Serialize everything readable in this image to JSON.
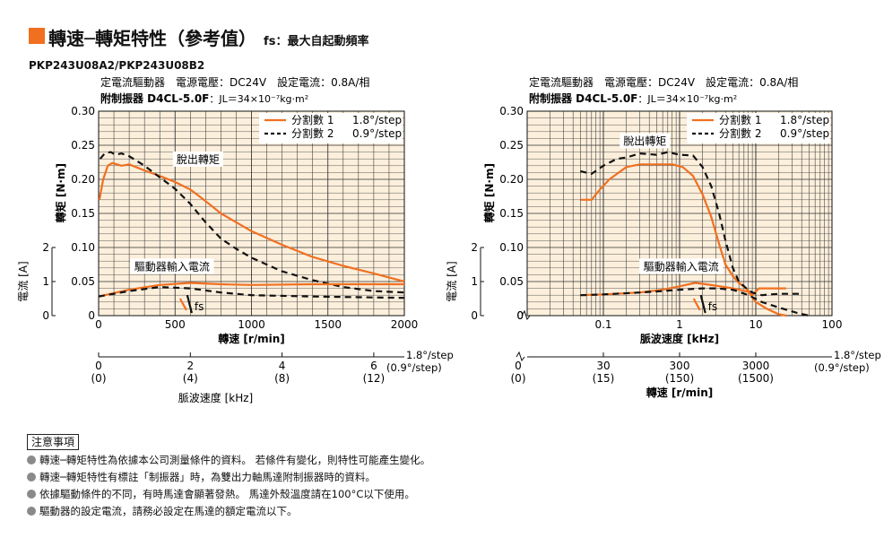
{
  "header": {
    "title": "轉速─轉矩特性（參考值）",
    "fs_note": "fs：最大自起動頻率",
    "model": "PKP243U08A2/PKP243U08B2",
    "accent_color": "#f07020"
  },
  "chart_data": [
    {
      "type": "line",
      "id": "left",
      "condition_line1": "定電流驅動器　電源電壓：DC24V　設定電流：0.8A/相",
      "condition_line2_bold": "附制振器 D4CL-5.0F",
      "condition_line2_rest": "：JL＝34×10⁻⁷kg·m²",
      "ylabel_torque": "轉矩 [N·m]",
      "ylabel_current": "電流 [A]",
      "xlabel": "轉速 [r/min]",
      "xlabel2": "脈波速度 [kHz]",
      "x_scale": "linear",
      "xlim": [
        0,
        2000
      ],
      "ylim": [
        0,
        0.3
      ],
      "x_ticks": [
        "0",
        "500",
        "1000",
        "1500",
        "2000"
      ],
      "y_ticks": [
        "0",
        "0.05",
        "0.10",
        "0.15",
        "0.20",
        "0.25",
        "0.30"
      ],
      "current_ticks": [
        "0",
        "1",
        "2"
      ],
      "secondary_ticks": [
        {
          "top": "0",
          "bottom": "(0)",
          "x": 0
        },
        {
          "top": "2",
          "bottom": "(4)",
          "x": 600
        },
        {
          "top": "4",
          "bottom": "(8)",
          "x": 1200
        },
        {
          "top": "6",
          "bottom": "(12)",
          "x": 1800
        }
      ],
      "secondary_unit_top": "1.8°/step",
      "secondary_unit_bottom": "(0.9°/step)",
      "legend": [
        {
          "name": "分割數 1",
          "step": "1.8°/step",
          "style": "solid"
        },
        {
          "name": "分割數 2",
          "step": "0.9°/step",
          "style": "dashed"
        }
      ],
      "annotations": {
        "pullout": "脫出轉矩",
        "current": "驅動器輸入電流",
        "fs": "fs"
      },
      "fs_value": 580,
      "series": [
        {
          "name": "分割數 1",
          "kind": "torque",
          "style": "solid",
          "points": [
            [
              5,
              0.17
            ],
            [
              30,
              0.2
            ],
            [
              60,
              0.22
            ],
            [
              90,
              0.224
            ],
            [
              120,
              0.222
            ],
            [
              150,
              0.22
            ],
            [
              200,
              0.222
            ],
            [
              300,
              0.213
            ],
            [
              400,
              0.205
            ],
            [
              500,
              0.196
            ],
            [
              600,
              0.185
            ],
            [
              700,
              0.168
            ],
            [
              800,
              0.15
            ],
            [
              900,
              0.137
            ],
            [
              1000,
              0.124
            ],
            [
              1200,
              0.104
            ],
            [
              1400,
              0.086
            ],
            [
              1600,
              0.073
            ],
            [
              1800,
              0.062
            ],
            [
              2000,
              0.05
            ]
          ]
        },
        {
          "name": "分割數 2",
          "kind": "torque",
          "style": "dashed",
          "points": [
            [
              10,
              0.23
            ],
            [
              40,
              0.238
            ],
            [
              80,
              0.24
            ],
            [
              110,
              0.236
            ],
            [
              150,
              0.238
            ],
            [
              200,
              0.234
            ],
            [
              300,
              0.22
            ],
            [
              400,
              0.203
            ],
            [
              500,
              0.186
            ],
            [
              600,
              0.164
            ],
            [
              700,
              0.137
            ],
            [
              800,
              0.113
            ],
            [
              900,
              0.098
            ],
            [
              1000,
              0.085
            ],
            [
              1200,
              0.065
            ],
            [
              1400,
              0.052
            ],
            [
              1600,
              0.042
            ],
            [
              1800,
              0.036
            ],
            [
              2000,
              0.034
            ]
          ]
        },
        {
          "name": "分割數 1",
          "kind": "current",
          "style": "solid",
          "points": [
            [
              0,
              0.028
            ],
            [
              200,
              0.038
            ],
            [
              400,
              0.045
            ],
            [
              600,
              0.048
            ],
            [
              800,
              0.046
            ],
            [
              1000,
              0.045
            ],
            [
              1400,
              0.046
            ],
            [
              2000,
              0.046
            ]
          ]
        },
        {
          "name": "分割數 2",
          "kind": "current",
          "style": "dashed",
          "points": [
            [
              0,
              0.028
            ],
            [
              200,
              0.036
            ],
            [
              400,
              0.042
            ],
            [
              600,
              0.04
            ],
            [
              800,
              0.034
            ],
            [
              1000,
              0.03
            ],
            [
              1400,
              0.028
            ],
            [
              2000,
              0.026
            ]
          ]
        }
      ]
    },
    {
      "type": "line",
      "id": "right",
      "condition_line1": "定電流驅動器　電源電壓：DC24V　設定電流：0.8A/相",
      "condition_line2_bold": "附制振器 D4CL-5.0F",
      "condition_line2_rest": "：JL＝34×10⁻⁷kg·m²",
      "ylabel_torque": "轉矩 [N·m]",
      "ylabel_current": "電流 [A]",
      "xlabel": "脈波速度 [kHz]",
      "xlabel2": "轉速 [r/min]",
      "x_scale": "log",
      "xlim": [
        0.01,
        100
      ],
      "ylim": [
        0,
        0.3
      ],
      "x_ticks": [
        "0.1",
        "1",
        "10",
        "100"
      ],
      "x_tick_values": [
        0.1,
        1,
        10,
        100
      ],
      "x_zero_label": "0",
      "y_ticks": [
        "0",
        "0.05",
        "0.10",
        "0.15",
        "0.20",
        "0.25",
        "0.30"
      ],
      "current_ticks": [
        "0",
        "1",
        "2"
      ],
      "secondary_ticks": [
        {
          "top": "30",
          "bottom": "(15)",
          "x": 0.1
        },
        {
          "top": "300",
          "bottom": "(150)",
          "x": 1
        },
        {
          "top": "3000",
          "bottom": "(1500)",
          "x": 10
        }
      ],
      "secondary_zero_top": "0",
      "secondary_zero_bottom": "(0)",
      "secondary_unit_top": "1.8°/step",
      "secondary_unit_bottom": "(0.9°/step)",
      "legend": [
        {
          "name": "分割數 1",
          "step": "1.8°/step",
          "style": "solid"
        },
        {
          "name": "分割數 2",
          "step": "0.9°/step",
          "style": "dashed"
        }
      ],
      "annotations": {
        "pullout": "脫出轉矩",
        "current": "驅動器輸入電流",
        "fs": "fs"
      },
      "fs_value": 1.9,
      "series": [
        {
          "name": "分割數 1",
          "kind": "torque",
          "style": "solid",
          "points": [
            [
              0.05,
              0.17
            ],
            [
              0.07,
              0.17
            ],
            [
              0.09,
              0.185
            ],
            [
              0.12,
              0.2
            ],
            [
              0.2,
              0.218
            ],
            [
              0.3,
              0.222
            ],
            [
              0.5,
              0.222
            ],
            [
              0.8,
              0.222
            ],
            [
              1.1,
              0.218
            ],
            [
              1.5,
              0.205
            ],
            [
              2,
              0.178
            ],
            [
              2.6,
              0.145
            ],
            [
              3.3,
              0.105
            ],
            [
              4,
              0.075
            ],
            [
              5,
              0.058
            ],
            [
              6,
              0.048
            ],
            [
              7.5,
              0.04
            ],
            [
              9,
              0.03
            ],
            [
              11,
              0.04
            ],
            [
              15,
              0.04
            ],
            [
              25,
              0.04
            ]
          ]
        },
        {
          "name": "分割數 2",
          "kind": "torque",
          "style": "dashed",
          "points": [
            [
              0.05,
              0.212
            ],
            [
              0.07,
              0.208
            ],
            [
              0.1,
              0.22
            ],
            [
              0.15,
              0.23
            ],
            [
              0.2,
              0.232
            ],
            [
              0.3,
              0.238
            ],
            [
              0.5,
              0.236
            ],
            [
              0.7,
              0.24
            ],
            [
              1,
              0.236
            ],
            [
              1.5,
              0.235
            ],
            [
              2,
              0.218
            ],
            [
              2.6,
              0.19
            ],
            [
              3.3,
              0.15
            ],
            [
              4,
              0.11
            ],
            [
              5,
              0.07
            ],
            [
              6,
              0.05
            ],
            [
              7.5,
              0.04
            ],
            [
              9,
              0.034
            ],
            [
              12,
              0.03
            ],
            [
              20,
              0.032
            ],
            [
              40,
              0.032
            ]
          ]
        },
        {
          "name": "分割數 1",
          "kind": "current",
          "style": "solid",
          "points": [
            [
              0.05,
              0.03
            ],
            [
              0.1,
              0.031
            ],
            [
              0.3,
              0.034
            ],
            [
              0.6,
              0.038
            ],
            [
              1,
              0.043
            ],
            [
              1.6,
              0.048
            ],
            [
              2.2,
              0.046
            ],
            [
              3,
              0.044
            ],
            [
              5,
              0.04
            ],
            [
              8,
              0.035
            ],
            [
              10,
              0.02
            ],
            [
              14,
              0.01
            ],
            [
              20,
              0.002
            ],
            [
              25,
              0.0
            ]
          ]
        },
        {
          "name": "分割數 2",
          "kind": "current",
          "style": "dashed",
          "points": [
            [
              0.05,
              0.03
            ],
            [
              0.1,
              0.031
            ],
            [
              0.3,
              0.034
            ],
            [
              0.6,
              0.036
            ],
            [
              1,
              0.038
            ],
            [
              2,
              0.04
            ],
            [
              3,
              0.04
            ],
            [
              5,
              0.038
            ],
            [
              8,
              0.03
            ],
            [
              12,
              0.02
            ],
            [
              20,
              0.012
            ],
            [
              35,
              0.004
            ],
            [
              50,
              0.0
            ]
          ]
        }
      ]
    }
  ],
  "notes": {
    "title": "注意事項",
    "items": [
      "轉速─轉矩特性為依據本公司測量條件的資料。 若條件有變化，則特性可能產生變化。",
      "轉速─轉矩特性有標註「制振器」時，為雙出力軸馬達附制振器時的資料。",
      "依據驅動條件的不同，有時馬達會顯著發熱。 馬達外殼溫度請在100°C以下使用。",
      "驅動器的設定電流，請務必設定在馬達的額定電流以下。"
    ]
  }
}
